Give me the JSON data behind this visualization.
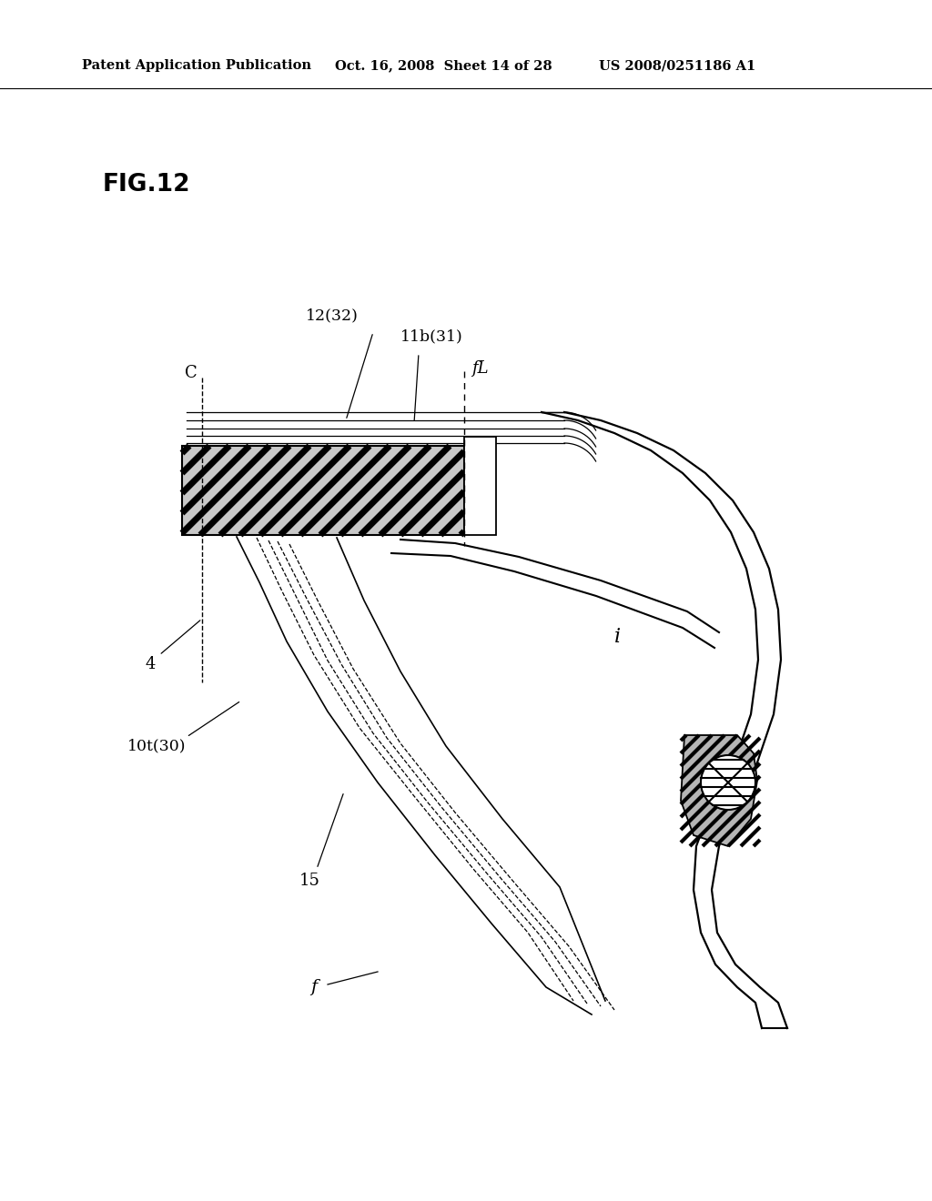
{
  "title": "FIG.12",
  "header_left": "Patent Application Publication",
  "header_mid": "Oct. 16, 2008  Sheet 14 of 28",
  "header_right": "US 2008/0251186 A1",
  "bg_color": "#ffffff",
  "labels": {
    "fig": "FIG.12",
    "C": "C",
    "fL": "fL",
    "label_12_32": "12(32)",
    "label_11b_31": "11b(31)",
    "label_4": "4",
    "label_10t_30": "10t(30)",
    "label_15": "15",
    "label_f": "f",
    "label_i": "i"
  }
}
